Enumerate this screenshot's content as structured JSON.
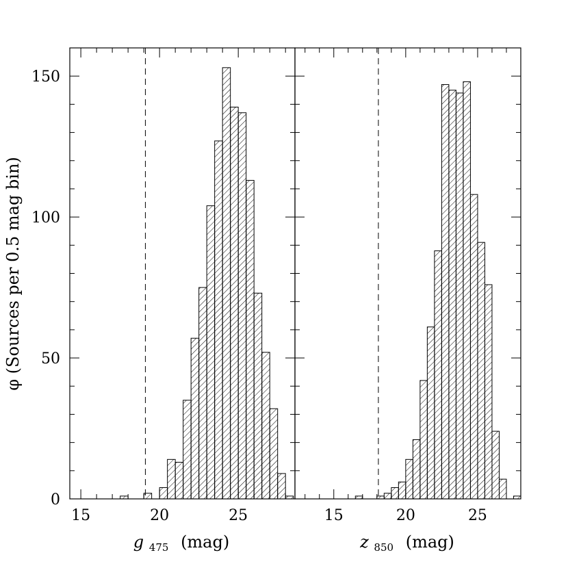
{
  "chart_data": [
    {
      "type": "bar",
      "panel": "left",
      "xlabel_main": "g",
      "xlabel_sub": "475",
      "xlabel_unit": "(mag)",
      "ylabel": "φ (Sources per 0.5 mag bin)",
      "xlim": [
        14.3,
        28.6
      ],
      "ylim": [
        0,
        160
      ],
      "x_ticks": [
        15,
        20,
        25
      ],
      "y_ticks": [
        0,
        50,
        100,
        150
      ],
      "y_tick_labels": [
        "0",
        "50",
        "100",
        "150"
      ],
      "dashed_line_x": 19.1,
      "hatch": "diagonal",
      "bin_width": 0.5,
      "bins": [
        {
          "x": 17.5,
          "value": 1
        },
        {
          "x": 19.0,
          "value": 2
        },
        {
          "x": 20.0,
          "value": 4
        },
        {
          "x": 20.5,
          "value": 14
        },
        {
          "x": 21.0,
          "value": 13
        },
        {
          "x": 21.5,
          "value": 35
        },
        {
          "x": 22.0,
          "value": 57
        },
        {
          "x": 22.5,
          "value": 75
        },
        {
          "x": 23.0,
          "value": 104
        },
        {
          "x": 23.5,
          "value": 127
        },
        {
          "x": 24.0,
          "value": 153
        },
        {
          "x": 24.5,
          "value": 139
        },
        {
          "x": 25.0,
          "value": 137
        },
        {
          "x": 25.5,
          "value": 113
        },
        {
          "x": 26.0,
          "value": 73
        },
        {
          "x": 26.5,
          "value": 52
        },
        {
          "x": 27.0,
          "value": 32
        },
        {
          "x": 27.5,
          "value": 9
        },
        {
          "x": 28.0,
          "value": 1
        }
      ]
    },
    {
      "type": "bar",
      "panel": "right",
      "xlabel_main": "z",
      "xlabel_sub": "850",
      "xlabel_unit": "(mag)",
      "xlim": [
        12.3,
        28.0
      ],
      "ylim": [
        0,
        160
      ],
      "x_ticks": [
        15,
        20,
        25
      ],
      "y_ticks": [
        0,
        50,
        100,
        150
      ],
      "dashed_line_x": 18.1,
      "hatch": "diagonal",
      "bin_width": 0.5,
      "bins": [
        {
          "x": 16.5,
          "value": 1
        },
        {
          "x": 18.0,
          "value": 1
        },
        {
          "x": 18.5,
          "value": 2
        },
        {
          "x": 19.0,
          "value": 4
        },
        {
          "x": 19.5,
          "value": 6
        },
        {
          "x": 20.0,
          "value": 14
        },
        {
          "x": 20.5,
          "value": 21
        },
        {
          "x": 21.0,
          "value": 42
        },
        {
          "x": 21.5,
          "value": 61
        },
        {
          "x": 22.0,
          "value": 88
        },
        {
          "x": 22.5,
          "value": 147
        },
        {
          "x": 23.0,
          "value": 145
        },
        {
          "x": 23.5,
          "value": 144
        },
        {
          "x": 24.0,
          "value": 148
        },
        {
          "x": 24.5,
          "value": 108
        },
        {
          "x": 25.0,
          "value": 91
        },
        {
          "x": 25.5,
          "value": 76
        },
        {
          "x": 26.0,
          "value": 24
        },
        {
          "x": 26.5,
          "value": 7
        },
        {
          "x": 27.5,
          "value": 1
        }
      ]
    }
  ]
}
